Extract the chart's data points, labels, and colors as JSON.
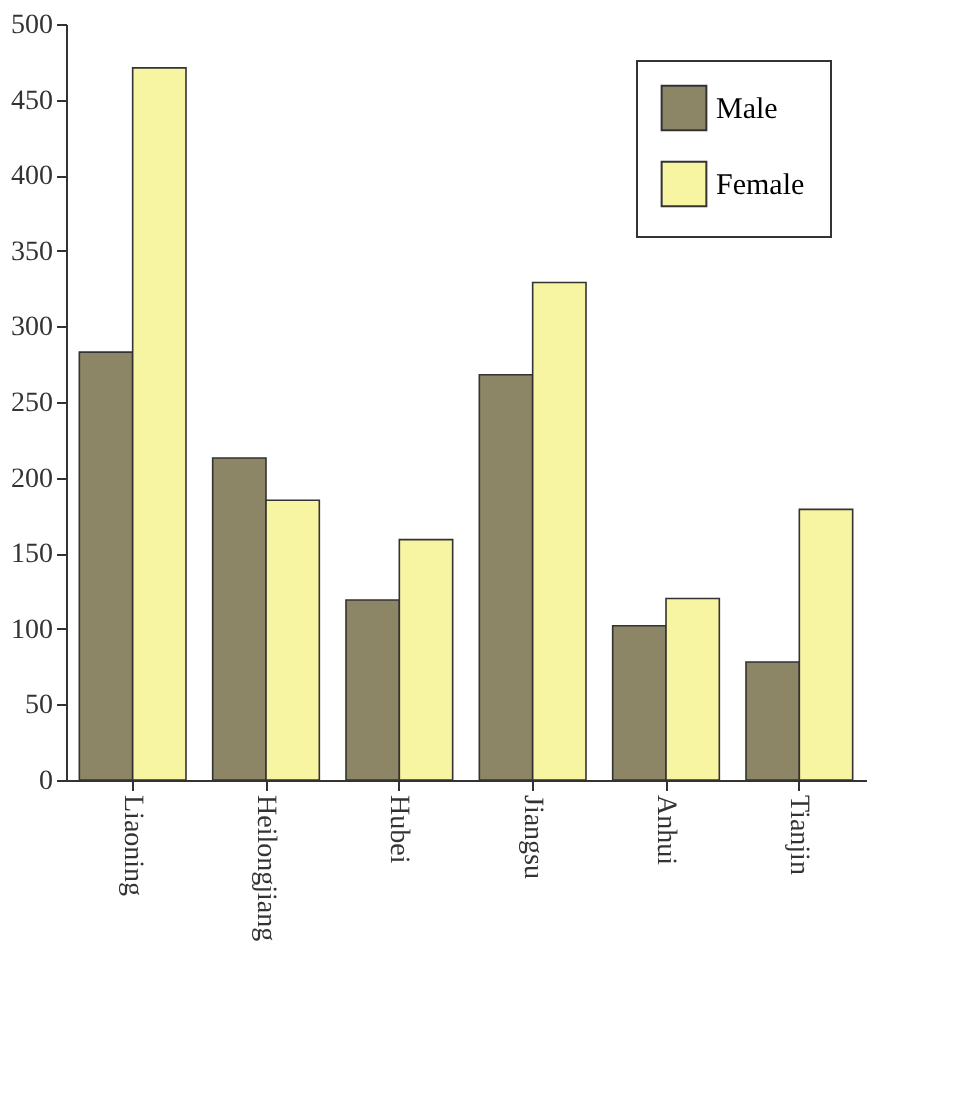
{
  "chart_data": {
    "type": "bar",
    "categories": [
      "Liaoning",
      "Heilongjiang",
      "Hubei",
      "Jiangsu",
      "Anhui",
      "Tianjin"
    ],
    "series": [
      {
        "name": "Male",
        "color": "#8c8566",
        "values": [
          283,
          213,
          119,
          268,
          102,
          78
        ]
      },
      {
        "name": "Female",
        "color": "#f7f4a2",
        "values": [
          471,
          185,
          159,
          329,
          120,
          179
        ]
      }
    ],
    "ylim": [
      0,
      500
    ],
    "yticks": [
      0,
      50,
      100,
      150,
      200,
      250,
      300,
      350,
      400,
      450,
      500
    ],
    "grid": false,
    "legend": "top right"
  }
}
